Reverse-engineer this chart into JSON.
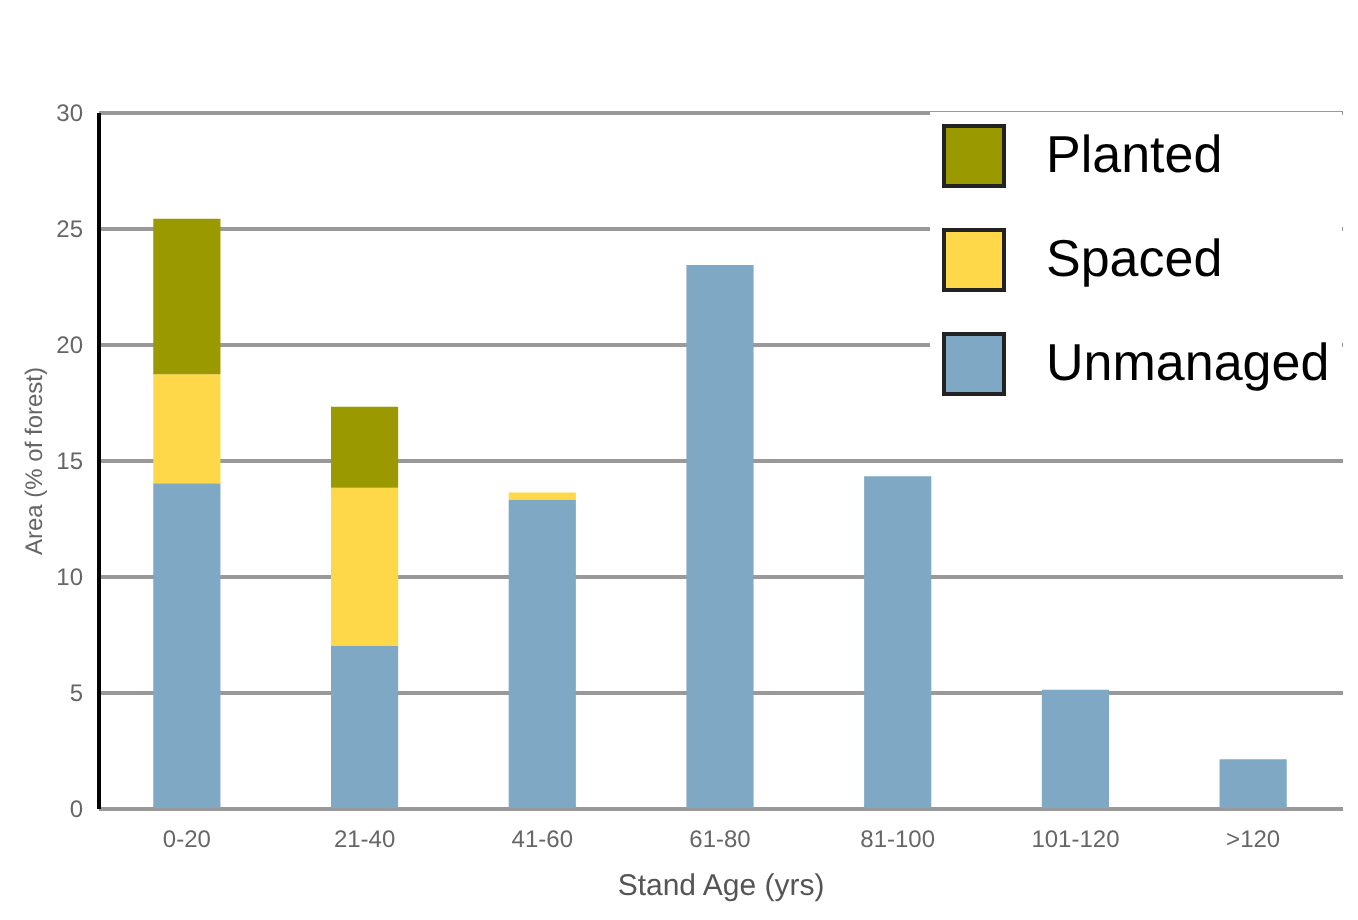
{
  "chart_data": {
    "type": "bar",
    "stacked": true,
    "xlabel": "Stand Age (yrs)",
    "ylabel": "Area (% of forest)",
    "categories": [
      "0-20",
      "21-40",
      "41-60",
      "61-80",
      "81-100",
      "101-120",
      ">120"
    ],
    "series": [
      {
        "name": "Unmanaged",
        "color": "#7fa8c4",
        "values": [
          14,
          7,
          13.3,
          23.4,
          14.3,
          5.1,
          2.1
        ]
      },
      {
        "name": "Spaced",
        "color": "#ffd84a",
        "values": [
          4.7,
          6.8,
          0.3,
          0,
          0,
          0,
          0
        ]
      },
      {
        "name": "Planted",
        "color": "#9a9a00",
        "values": [
          6.7,
          3.5,
          0,
          0,
          0,
          0,
          0
        ]
      }
    ],
    "ylim": [
      0,
      30
    ],
    "yticks": [
      0,
      5,
      10,
      15,
      20,
      25,
      30
    ],
    "grid": "y",
    "legend": "top right"
  }
}
